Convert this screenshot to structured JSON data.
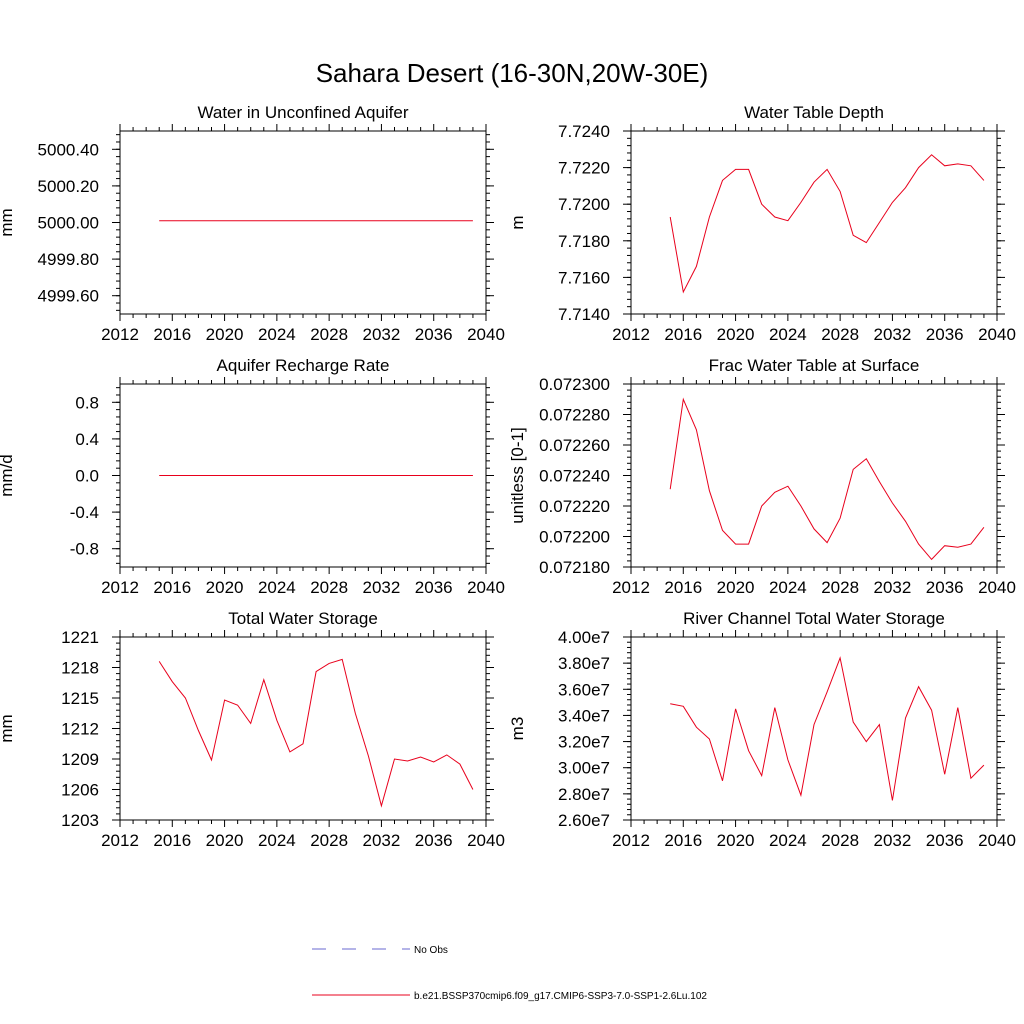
{
  "figure_title": "Sahara Desert (16-30N,20W-30E)",
  "legend": {
    "obs_label": "No Obs",
    "model_label": "b.e21.BSSP370cmip6.f09_g17.CMIP6-SSP3-7.0-SSP1-2.6Lu.102",
    "colors": {
      "obs": "#6a6ad0",
      "model": "#e8001c"
    }
  },
  "chart_data": [
    {
      "id": "unconfined-aquifer",
      "type": "line",
      "title": "Water in Unconfined Aquifer",
      "ylabel": "mm",
      "xlim": [
        2012,
        2040
      ],
      "xticks": [
        2012,
        2016,
        2020,
        2024,
        2028,
        2032,
        2036,
        2040
      ],
      "ylim": [
        4999.5,
        5000.5
      ],
      "yticks": [
        4999.6,
        4999.8,
        5000.0,
        5000.2,
        5000.4
      ],
      "ytick_labels": [
        "4999.60",
        "4999.80",
        "5000.00",
        "5000.20",
        "5000.40"
      ],
      "series": [
        {
          "color": "#e8001c",
          "x": [
            2015,
            2039
          ],
          "y": [
            5000.01,
            5000.01
          ]
        }
      ]
    },
    {
      "id": "water-table-depth",
      "type": "line",
      "title": "Water Table Depth",
      "ylabel": "m",
      "xlim": [
        2012,
        2040
      ],
      "xticks": [
        2012,
        2016,
        2020,
        2024,
        2028,
        2032,
        2036,
        2040
      ],
      "ylim": [
        7.714,
        7.724
      ],
      "yticks": [
        7.714,
        7.716,
        7.718,
        7.72,
        7.722,
        7.724
      ],
      "ytick_labels": [
        "7.7140",
        "7.7160",
        "7.7180",
        "7.7200",
        "7.7220",
        "7.7240"
      ],
      "series": [
        {
          "color": "#e8001c",
          "x": [
            2015,
            2016,
            2017,
            2018,
            2019,
            2020,
            2021,
            2022,
            2023,
            2024,
            2025,
            2026,
            2027,
            2028,
            2029,
            2030,
            2031,
            2032,
            2033,
            2034,
            2035,
            2036,
            2037,
            2038,
            2039
          ],
          "y": [
            7.7193,
            7.7152,
            7.7166,
            7.7193,
            7.7213,
            7.7219,
            7.7219,
            7.72,
            7.7193,
            7.7191,
            7.7201,
            7.7212,
            7.7219,
            7.7207,
            7.7183,
            7.7179,
            7.719,
            7.7201,
            7.7209,
            7.722,
            7.7227,
            7.7221,
            7.7222,
            7.7221,
            7.7213
          ]
        }
      ]
    },
    {
      "id": "aquifer-recharge",
      "type": "line",
      "title": "Aquifer Recharge Rate",
      "ylabel": "mm/d",
      "xlim": [
        2012,
        2040
      ],
      "xticks": [
        2012,
        2016,
        2020,
        2024,
        2028,
        2032,
        2036,
        2040
      ],
      "ylim": [
        -1.0,
        1.0
      ],
      "yticks": [
        -0.8,
        -0.4,
        0.0,
        0.4,
        0.8
      ],
      "ytick_labels": [
        "-0.8",
        "-0.4",
        "0.0",
        "0.4",
        "0.8"
      ],
      "series": [
        {
          "color": "#e8001c",
          "x": [
            2015,
            2039
          ],
          "y": [
            0.0,
            0.0
          ]
        }
      ]
    },
    {
      "id": "frac-water-table",
      "type": "line",
      "title": "Frac Water Table at Surface",
      "ylabel": "unitless [0-1]",
      "xlim": [
        2012,
        2040
      ],
      "xticks": [
        2012,
        2016,
        2020,
        2024,
        2028,
        2032,
        2036,
        2040
      ],
      "ylim": [
        0.07218,
        0.0723
      ],
      "yticks": [
        0.07218,
        0.0722,
        0.07222,
        0.07224,
        0.07226,
        0.07228,
        0.0723
      ],
      "ytick_labels": [
        "0.072180",
        "0.072200",
        "0.072220",
        "0.072240",
        "0.072260",
        "0.072280",
        "0.072300"
      ],
      "series": [
        {
          "color": "#e8001c",
          "x": [
            2015,
            2016,
            2017,
            2018,
            2019,
            2020,
            2021,
            2022,
            2023,
            2024,
            2025,
            2026,
            2027,
            2028,
            2029,
            2030,
            2031,
            2032,
            2033,
            2034,
            2035,
            2036,
            2037,
            2038,
            2039
          ],
          "y": [
            0.072231,
            0.07229,
            0.07227,
            0.07223,
            0.072204,
            0.072195,
            0.072195,
            0.07222,
            0.072229,
            0.072233,
            0.07222,
            0.072205,
            0.072196,
            0.072212,
            0.072244,
            0.072251,
            0.072236,
            0.072222,
            0.07221,
            0.072195,
            0.072185,
            0.072194,
            0.072193,
            0.072195,
            0.072206
          ]
        }
      ]
    },
    {
      "id": "total-water-storage",
      "type": "line",
      "title": "Total Water Storage",
      "ylabel": "mm",
      "xlim": [
        2012,
        2040
      ],
      "xticks": [
        2012,
        2016,
        2020,
        2024,
        2028,
        2032,
        2036,
        2040
      ],
      "ylim": [
        1203,
        1221
      ],
      "yticks": [
        1203,
        1206,
        1209,
        1212,
        1215,
        1218,
        1221
      ],
      "ytick_labels": [
        "1203",
        "1206",
        "1209",
        "1212",
        "1215",
        "1218",
        "1221"
      ],
      "series": [
        {
          "color": "#e8001c",
          "x": [
            2015,
            2016,
            2017,
            2018,
            2019,
            2020,
            2021,
            2022,
            2023,
            2024,
            2025,
            2026,
            2027,
            2028,
            2029,
            2030,
            2031,
            2032,
            2033,
            2034,
            2035,
            2036,
            2037,
            2038,
            2039
          ],
          "y": [
            1218.6,
            1216.6,
            1215.0,
            1211.8,
            1208.9,
            1214.8,
            1214.3,
            1212.5,
            1216.8,
            1212.8,
            1209.7,
            1210.5,
            1217.6,
            1218.4,
            1218.8,
            1213.5,
            1209.3,
            1204.4,
            1209.0,
            1208.8,
            1209.2,
            1208.7,
            1209.4,
            1208.5,
            1206.0
          ]
        }
      ]
    },
    {
      "id": "river-channel-storage",
      "type": "line",
      "title": "River Channel Total Water Storage",
      "ylabel": "m3",
      "xlim": [
        2012,
        2040
      ],
      "xticks": [
        2012,
        2016,
        2020,
        2024,
        2028,
        2032,
        2036,
        2040
      ],
      "ylim": [
        26000000,
        40000000
      ],
      "yticks": [
        26000000,
        28000000,
        30000000,
        32000000,
        34000000,
        36000000,
        38000000,
        40000000
      ],
      "ytick_labels": [
        "2.60e7",
        "2.80e7",
        "3.00e7",
        "3.20e7",
        "3.40e7",
        "3.60e7",
        "3.80e7",
        "4.00e7"
      ],
      "series": [
        {
          "color": "#e8001c",
          "x": [
            2015,
            2016,
            2017,
            2018,
            2019,
            2020,
            2021,
            2022,
            2023,
            2024,
            2025,
            2026,
            2027,
            2028,
            2029,
            2030,
            2031,
            2032,
            2033,
            2034,
            2035,
            2036,
            2037,
            2038,
            2039
          ],
          "y": [
            34900000,
            34700000,
            33100000,
            32200000,
            29000000,
            34500000,
            31300000,
            29400000,
            34600000,
            30600000,
            27900000,
            33300000,
            35800000,
            38400000,
            33500000,
            32000000,
            33300000,
            27500000,
            33800000,
            36200000,
            34400000,
            29500000,
            34600000,
            29200000,
            30200000
          ]
        }
      ]
    }
  ]
}
